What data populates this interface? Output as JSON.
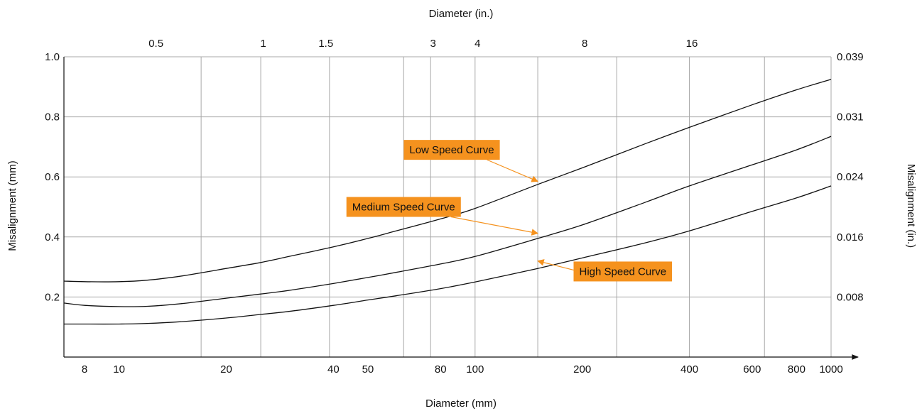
{
  "chart_data": {
    "type": "line",
    "x_scale": "log",
    "xlabel": "Diameter (mm)",
    "x2label": "Diameter (in.)",
    "ylabel": "Misalignment (mm)",
    "y2label": "Misalignment (in.)",
    "xlim": [
      7,
      1000
    ],
    "ylim": [
      0,
      1.0
    ],
    "grid": true,
    "x_ticks": [
      {
        "value": 8,
        "label": "8"
      },
      {
        "value": 10,
        "label": "10"
      },
      {
        "value": 20,
        "label": "20"
      },
      {
        "value": 40,
        "label": "40"
      },
      {
        "value": 50,
        "label": "50"
      },
      {
        "value": 80,
        "label": "80"
      },
      {
        "value": 100,
        "label": "100"
      },
      {
        "value": 200,
        "label": "200"
      },
      {
        "value": 400,
        "label": "400"
      },
      {
        "value": 600,
        "label": "600"
      },
      {
        "value": 800,
        "label": "800"
      },
      {
        "value": 1000,
        "label": "1000"
      }
    ],
    "x2_ticks": [
      {
        "value": 12.7,
        "label": "0.5"
      },
      {
        "value": 25.4,
        "label": "1"
      },
      {
        "value": 38.1,
        "label": "1.5"
      },
      {
        "value": 76.2,
        "label": "3"
      },
      {
        "value": 101.6,
        "label": "4"
      },
      {
        "value": 203.2,
        "label": "8"
      },
      {
        "value": 406.4,
        "label": "16"
      }
    ],
    "y_ticks": [
      {
        "value": 0.2,
        "label": "0.2"
      },
      {
        "value": 0.4,
        "label": "0.4"
      },
      {
        "value": 0.6,
        "label": "0.6"
      },
      {
        "value": 0.8,
        "label": "0.8"
      },
      {
        "value": 1.0,
        "label": "1.0"
      }
    ],
    "y2_ticks": [
      {
        "value": 0.2,
        "label": "0.008"
      },
      {
        "value": 0.4,
        "label": "0.016"
      },
      {
        "value": 0.6,
        "label": "0.024"
      },
      {
        "value": 0.8,
        "label": "0.031"
      },
      {
        "value": 1.0,
        "label": "0.039"
      }
    ],
    "grid_x": [
      17,
      25,
      39,
      63,
      75,
      100,
      150,
      250,
      400,
      650,
      1000
    ],
    "grid_y": [
      0.2,
      0.4,
      0.6,
      0.8,
      1.0
    ],
    "series": [
      {
        "name": "Low Speed Curve",
        "label": {
          "text": "Low Speed Curve",
          "anchor_x": 150,
          "anchor_y": 0.585,
          "box_x": 86,
          "box_y": 0.69
        },
        "points": [
          [
            7,
            0.253
          ],
          [
            8,
            0.251
          ],
          [
            10,
            0.251
          ],
          [
            12,
            0.256
          ],
          [
            15,
            0.27
          ],
          [
            20,
            0.295
          ],
          [
            25,
            0.315
          ],
          [
            30,
            0.335
          ],
          [
            40,
            0.367
          ],
          [
            50,
            0.395
          ],
          [
            60,
            0.42
          ],
          [
            80,
            0.46
          ],
          [
            100,
            0.495
          ],
          [
            150,
            0.575
          ],
          [
            200,
            0.63
          ],
          [
            300,
            0.71
          ],
          [
            400,
            0.765
          ],
          [
            600,
            0.84
          ],
          [
            800,
            0.89
          ],
          [
            1000,
            0.925
          ]
        ]
      },
      {
        "name": "Medium Speed Curve",
        "label": {
          "text": "Medium Speed Curve",
          "anchor_x": 150,
          "anchor_y": 0.412,
          "box_x": 63,
          "box_y": 0.5
        },
        "points": [
          [
            7,
            0.18
          ],
          [
            8,
            0.172
          ],
          [
            10,
            0.168
          ],
          [
            12,
            0.169
          ],
          [
            15,
            0.178
          ],
          [
            20,
            0.196
          ],
          [
            25,
            0.21
          ],
          [
            30,
            0.222
          ],
          [
            40,
            0.245
          ],
          [
            50,
            0.265
          ],
          [
            60,
            0.282
          ],
          [
            80,
            0.31
          ],
          [
            100,
            0.335
          ],
          [
            150,
            0.395
          ],
          [
            200,
            0.44
          ],
          [
            300,
            0.515
          ],
          [
            400,
            0.57
          ],
          [
            600,
            0.64
          ],
          [
            800,
            0.69
          ],
          [
            1000,
            0.735
          ]
        ]
      },
      {
        "name": "High Speed Curve",
        "label": {
          "text": "High Speed Curve",
          "anchor_x": 150,
          "anchor_y": 0.32,
          "box_x": 260,
          "box_y": 0.285
        },
        "points": [
          [
            7,
            0.11
          ],
          [
            8,
            0.11
          ],
          [
            10,
            0.11
          ],
          [
            12,
            0.112
          ],
          [
            15,
            0.118
          ],
          [
            20,
            0.13
          ],
          [
            25,
            0.142
          ],
          [
            30,
            0.152
          ],
          [
            40,
            0.172
          ],
          [
            50,
            0.19
          ],
          [
            60,
            0.204
          ],
          [
            80,
            0.228
          ],
          [
            100,
            0.25
          ],
          [
            150,
            0.295
          ],
          [
            200,
            0.33
          ],
          [
            300,
            0.38
          ],
          [
            400,
            0.42
          ],
          [
            600,
            0.485
          ],
          [
            800,
            0.53
          ],
          [
            1000,
            0.57
          ]
        ]
      }
    ]
  }
}
